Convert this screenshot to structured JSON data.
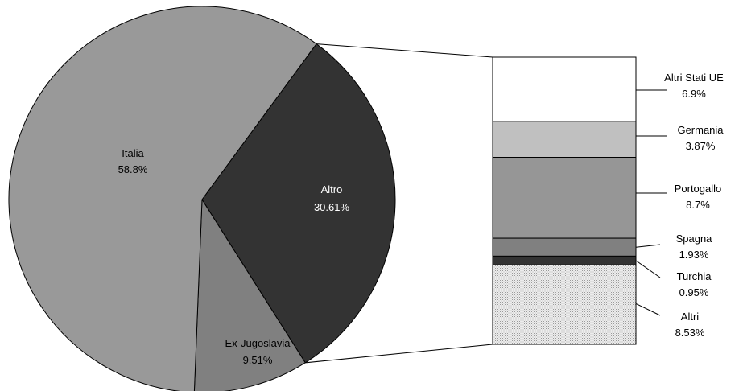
{
  "chart_data": {
    "type": "pie",
    "subtype": "bar-of-pie",
    "title": "",
    "pie": {
      "slices": [
        {
          "label": "Italia",
          "value_text": "58.8%",
          "value": 58.8,
          "color": "#999999",
          "label_color": "#000000"
        },
        {
          "label": "Altro",
          "value_text": "30.61%",
          "value": 30.61,
          "color": "#333333",
          "label_color": "#ffffff"
        },
        {
          "label": "Ex-Jugoslavia",
          "value_text": "9.51%",
          "value": 9.51,
          "color": "#808080",
          "label_color": "#000000"
        }
      ],
      "exploded_slice": "Altro"
    },
    "bar": {
      "segments": [
        {
          "label": "Altri Stati UE",
          "value_text": "6.9%",
          "value": 6.9,
          "color": "#ffffff",
          "pattern": "none"
        },
        {
          "label": "Germania",
          "value_text": "3.87%",
          "value": 3.87,
          "color": "#c0c0c0",
          "pattern": "none"
        },
        {
          "label": "Portogallo",
          "value_text": "8.7%",
          "value": 8.7,
          "color": "#969696",
          "pattern": "none"
        },
        {
          "label": "Spagna",
          "value_text": "1.93%",
          "value": 1.93,
          "color": "#808080",
          "pattern": "none"
        },
        {
          "label": "Turchia",
          "value_text": "0.95%",
          "value": 0.95,
          "color": "#333333",
          "pattern": "none"
        },
        {
          "label": "Altri",
          "value_text": "8.53%",
          "value": 8.53,
          "color": "#e4e4e4",
          "pattern": "dots"
        }
      ]
    },
    "legend": "none",
    "grid": false
  }
}
